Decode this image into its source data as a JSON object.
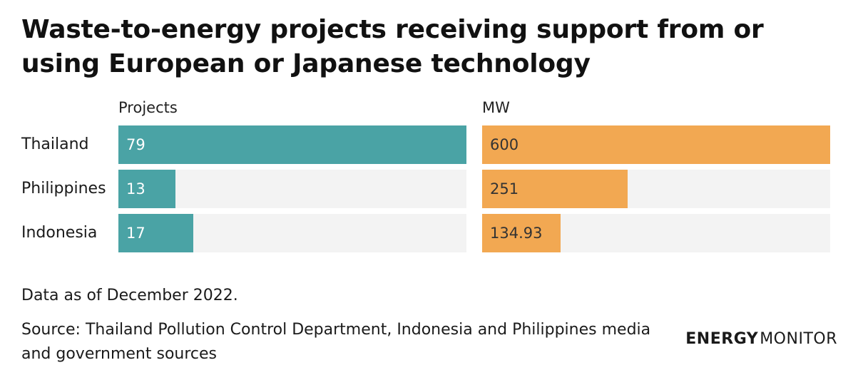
{
  "header": {
    "title": "Waste-to-energy projects receiving support from or using European or Japanese technology"
  },
  "chart_data": {
    "type": "bar",
    "orientation": "horizontal",
    "title": "Waste-to-energy projects receiving support from or using European or Japanese technology",
    "categories": [
      "Thailand",
      "Philippines",
      "Indonesia"
    ],
    "series": [
      {
        "name": "Projects",
        "values": [
          79,
          13,
          17
        ],
        "value_labels": [
          "79",
          "13",
          "17"
        ],
        "color": "#4aa3a5",
        "xlim": [
          0,
          79
        ]
      },
      {
        "name": "MW",
        "values": [
          600,
          251,
          134.93
        ],
        "value_labels": [
          "600",
          "251",
          "134.93"
        ],
        "color": "#f2a852",
        "xlim": [
          0,
          600
        ]
      }
    ],
    "track_color": "#f3f3f3"
  },
  "footer": {
    "note": "Data as of December 2022.",
    "source": "Source: Thailand Pollution Control Department, Indonesia and Philippines media and government sources"
  },
  "brand": {
    "bold": "ENERGY",
    "thin": "MONITOR"
  }
}
